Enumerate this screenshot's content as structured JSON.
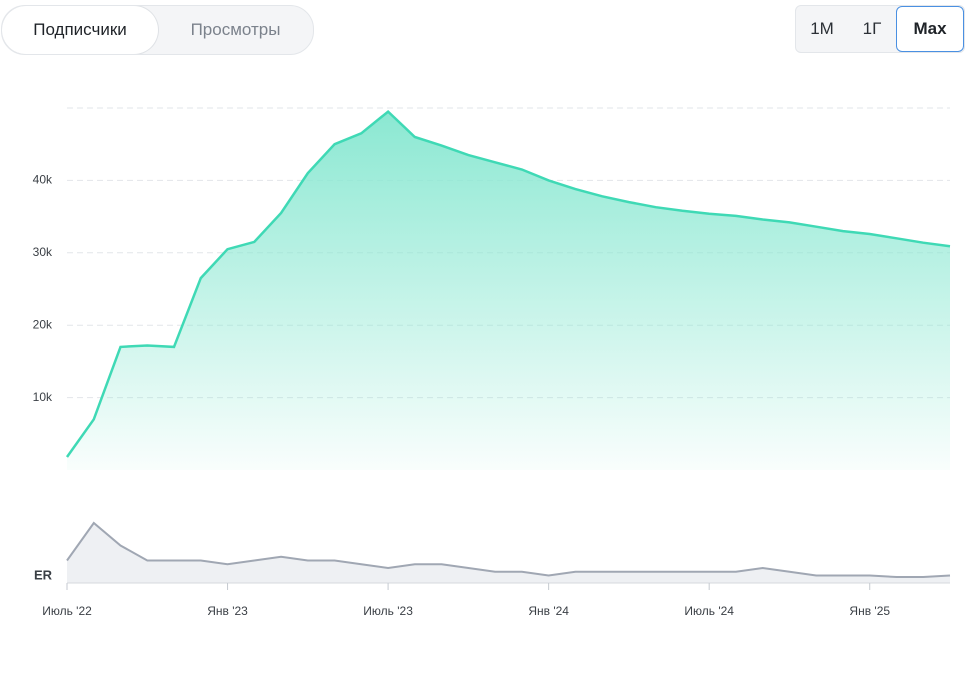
{
  "controls": {
    "tabs": [
      "Подписчики",
      "Просмотры"
    ],
    "periods": [
      "1М",
      "1Г",
      "Max"
    ]
  },
  "chart_data": {
    "type": "area",
    "x": [
      "2022-07",
      "2022-08",
      "2022-09",
      "2022-10",
      "2022-11",
      "2022-12",
      "2023-01",
      "2023-02",
      "2023-03",
      "2023-04",
      "2023-05",
      "2023-06",
      "2023-07",
      "2023-08",
      "2023-09",
      "2023-10",
      "2023-11",
      "2023-12",
      "2024-01",
      "2024-02",
      "2024-03",
      "2024-04",
      "2024-05",
      "2024-06",
      "2024-07",
      "2024-08",
      "2024-09",
      "2024-10",
      "2024-11",
      "2024-12",
      "2025-01",
      "2025-02",
      "2025-03",
      "2025-04"
    ],
    "xlim": [
      "2022-07",
      "2025-04"
    ],
    "xticks": [
      {
        "value": "2022-07",
        "label": "Июль '22"
      },
      {
        "value": "2023-01",
        "label": "Янв '23"
      },
      {
        "value": "2023-07",
        "label": "Июль '23"
      },
      {
        "value": "2024-01",
        "label": "Янв '24"
      },
      {
        "value": "2024-07",
        "label": "Июль '24"
      },
      {
        "value": "2025-01",
        "label": "Янв '25"
      }
    ],
    "ylim": [
      0,
      50000
    ],
    "yticks": [
      {
        "value": 10000,
        "label": "10k"
      },
      {
        "value": 20000,
        "label": "20k"
      },
      {
        "value": 30000,
        "label": "30k"
      },
      {
        "value": 40000,
        "label": "40k"
      }
    ],
    "grid": true,
    "series": [
      {
        "color": "#3fd9b5",
        "values": [
          1800,
          7000,
          17000,
          17200,
          17000,
          26500,
          30500,
          31500,
          35500,
          41000,
          45000,
          46500,
          49500,
          46000,
          44800,
          43500,
          42500,
          41500,
          40000,
          38800,
          37800,
          37000,
          36300,
          35800,
          35400,
          35100,
          34600,
          34200,
          33600,
          33000,
          32600,
          32000,
          31400,
          30900
        ]
      },
      {
        "name": "ER",
        "color": "#a0a7b3",
        "ylim": [
          0,
          10
        ],
        "values": [
          3,
          8,
          5,
          3,
          3,
          3,
          2.5,
          3,
          3.5,
          3,
          3,
          2.5,
          2,
          2.5,
          2.5,
          2,
          1.5,
          1.5,
          1,
          1.5,
          1.5,
          1.5,
          1.5,
          1.5,
          1.5,
          1.5,
          2,
          1.5,
          1,
          1,
          1,
          0.8,
          0.8,
          1
        ]
      }
    ]
  }
}
